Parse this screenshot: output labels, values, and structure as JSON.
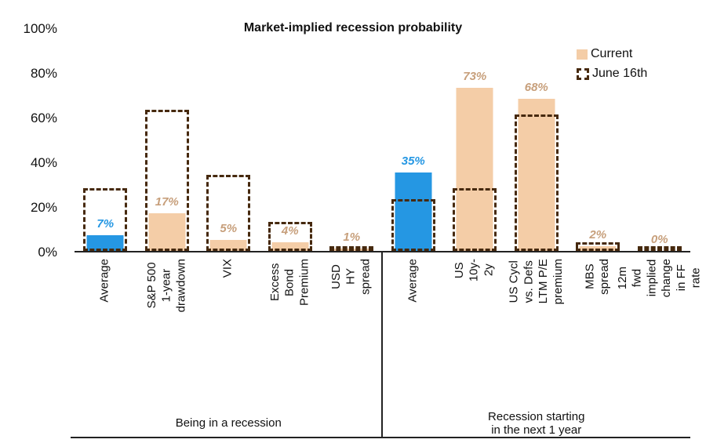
{
  "chart_data": {
    "type": "bar",
    "title": "Market-implied recession probability",
    "ylim": [
      0,
      100
    ],
    "grid": false,
    "legend_position": "top-right",
    "legend": [
      "Current",
      "June 16th"
    ],
    "y_ticks": [
      "100%",
      "80%",
      "60%",
      "40%",
      "20%",
      "0%"
    ],
    "y_tick_values": [
      100,
      80,
      60,
      40,
      20,
      0
    ],
    "series_note": "current = solid filled bar, june16 = dashed outline box",
    "groups": [
      {
        "label": "Being in a recession",
        "label_lines": [
          "Being in a recession"
        ],
        "categories": [
          {
            "label": "Average",
            "lines": [
              "Average"
            ],
            "current": 7,
            "june16": 28,
            "value_label": "7%",
            "highlight": true
          },
          {
            "label": "S&P 500 1-year drawdown",
            "lines": [
              "S&P 500 1-year",
              "drawdown"
            ],
            "current": 17,
            "june16": 63,
            "value_label": "17%",
            "highlight": false
          },
          {
            "label": "VIX",
            "lines": [
              "VIX"
            ],
            "current": 5,
            "june16": 34,
            "value_label": "5%",
            "highlight": false
          },
          {
            "label": "Excess Bond Premium",
            "lines": [
              "Excess Bond",
              "Premium"
            ],
            "current": 4,
            "june16": 13,
            "value_label": "4%",
            "highlight": false
          },
          {
            "label": "USD HY spread",
            "lines": [
              "USD HY spread"
            ],
            "current": 1,
            "june16": 2,
            "value_label": "1%",
            "highlight": false
          }
        ]
      },
      {
        "label": "Recession starting in the next 1 year",
        "label_lines": [
          "Recession starting",
          "in the next 1 year"
        ],
        "categories": [
          {
            "label": "Average",
            "lines": [
              "Average"
            ],
            "current": 35,
            "june16": 23,
            "value_label": "35%",
            "highlight": true
          },
          {
            "label": "US 10y-2y",
            "lines": [
              "US 10y-2y"
            ],
            "current": 73,
            "june16": 28,
            "value_label": "73%",
            "highlight": false
          },
          {
            "label": "US Cycl vs. Defs LTM P/E premium",
            "lines": [
              "US Cycl vs. Defs",
              "LTM P/E premium"
            ],
            "current": 68,
            "june16": 61,
            "value_label": "68%",
            "highlight": false
          },
          {
            "label": "MBS spread",
            "lines": [
              "MBS spread"
            ],
            "current": 2,
            "june16": 4,
            "value_label": "2%",
            "highlight": false
          },
          {
            "label": "12m fwd implied change in FF rate",
            "lines": [
              "12m fwd implied",
              "change in FF rate"
            ],
            "current": 0,
            "june16": 2,
            "value_label": "0%",
            "highlight": false
          }
        ]
      }
    ],
    "colors": {
      "current_fill": "#f4cda7",
      "highlight_fill": "#2597e3",
      "june_stroke": "#46290e",
      "label_tan": "#c79f7b",
      "label_blue": "#2597e3",
      "axis": "#222222"
    }
  }
}
